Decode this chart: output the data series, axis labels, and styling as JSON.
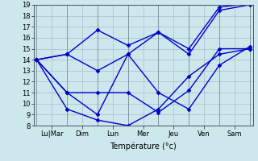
{
  "xlabel": "Température (°c)",
  "background_color": "#cce8ec",
  "grid_color": "#aabbcc",
  "line_color": "#0000cc",
  "ylim": [
    8,
    19
  ],
  "yticks": [
    8,
    9,
    10,
    11,
    12,
    13,
    14,
    15,
    16,
    17,
    18,
    19
  ],
  "xtick_labels": [
    "Lu|Mar",
    "Dim",
    "Lun",
    "Mer",
    "Jeu",
    "Ven",
    "Sam"
  ],
  "xtick_positions": [
    0.5,
    1.5,
    2.5,
    3.5,
    4.5,
    5.5,
    6.5
  ],
  "x_separator_positions": [
    0,
    1,
    2,
    3,
    4,
    5,
    6,
    7
  ],
  "series": [
    [
      14.0,
      11.0,
      11.0,
      11.0,
      9.2,
      11.2,
      15.0,
      15.0
    ],
    [
      14.0,
      9.5,
      8.5,
      8.0,
      9.5,
      12.5,
      14.5,
      15.0
    ],
    [
      14.0,
      14.5,
      16.7,
      15.3,
      16.5,
      14.5,
      18.5,
      19.0
    ],
    [
      14.0,
      14.5,
      13.0,
      14.5,
      16.5,
      15.0,
      18.8,
      19.1
    ],
    [
      14.0,
      11.0,
      9.0,
      14.5,
      11.0,
      9.5,
      13.5,
      15.2
    ]
  ],
  "x_data": [
    0,
    1,
    2,
    3,
    4,
    5,
    6,
    7
  ],
  "marker": "D",
  "markersize": 2.5,
  "linewidth": 1.0
}
